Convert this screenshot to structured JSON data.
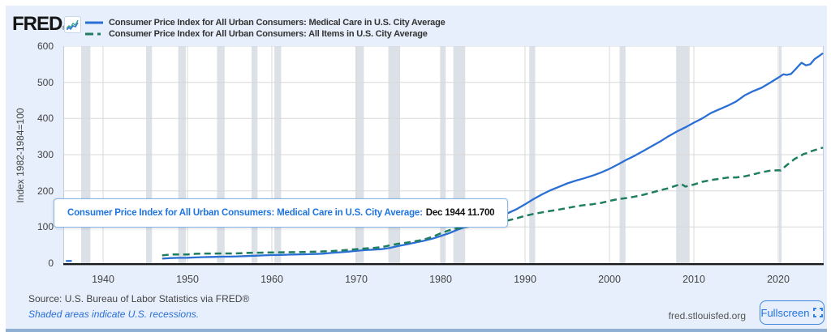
{
  "header": {
    "logo_text": "FRED",
    "logo_reg": "®",
    "legend": [
      {
        "label": "Consumer Price Index for All Urban Consumers: Medical Care in U.S. City Average",
        "color": "#2a6fd4",
        "line_style": "solid"
      },
      {
        "label": "Consumer Price Index for All Urban Consumers: All Items in U.S. City Average",
        "color": "#1e7e5e",
        "line_style": "dashed"
      }
    ]
  },
  "tooltip": {
    "series_label": "Consumer Price Index for All Urban Consumers: Medical Care in U.S. City Average:",
    "value_text": "Dec 1944 11.700"
  },
  "footer": {
    "source": "Source: U.S. Bureau of Labor Statistics via FRED®",
    "recession_note": "Shaded areas indicate U.S. recessions.",
    "site": "fred.stlouisfed.org",
    "fullscreen_label": "Fullscreen"
  },
  "colors": {
    "background": "#e6effb",
    "plot_background": "#ffffff",
    "gridline": "#d8d8d8",
    "plot_border": "#c8ccd0",
    "recession_band": "#dce1e8",
    "axis_line": "#1a1a1a",
    "series_medical": "#2a6fd4",
    "series_all_items": "#1e7e5e",
    "accent_blue": "#2272dd"
  },
  "chart_data": {
    "type": "line",
    "title": "",
    "xlabel": "",
    "ylabel": "Index 1982-1984=100",
    "x_range": [
      1935.3,
      2025.4
    ],
    "ylim": [
      0,
      600
    ],
    "x_ticks": [
      1940,
      1950,
      1960,
      1970,
      1980,
      1990,
      2000,
      2010,
      2020
    ],
    "y_ticks": [
      0,
      100,
      200,
      300,
      400,
      500,
      600
    ],
    "grid": true,
    "legend_position": "top-left",
    "recessions": [
      [
        1937.4,
        1938.5
      ],
      [
        1945.1,
        1945.8
      ],
      [
        1948.9,
        1949.8
      ],
      [
        1953.5,
        1954.4
      ],
      [
        1957.6,
        1958.3
      ],
      [
        1960.3,
        1961.1
      ],
      [
        1969.9,
        1970.9
      ],
      [
        1973.8,
        1975.2
      ],
      [
        1980.0,
        1980.6
      ],
      [
        1981.5,
        1982.9
      ],
      [
        1990.5,
        1991.2
      ],
      [
        2001.2,
        2001.9
      ],
      [
        2007.9,
        2009.5
      ],
      [
        2020.1,
        2020.4
      ]
    ],
    "series": [
      {
        "name": "Consumer Price Index for All Urban Consumers: Medical Care in U.S. City Average",
        "color": "#2a6fd4",
        "line_style": "solid",
        "segments": [
          [
            [
              1935.6,
              6
            ],
            [
              1936.3,
              6
            ]
          ],
          [
            [
              1947,
              12.6
            ],
            [
              1948,
              14.1
            ],
            [
              1949,
              14.7
            ],
            [
              1950,
              15.1
            ],
            [
              1951,
              15.9
            ],
            [
              1952,
              16.7
            ],
            [
              1953,
              17.3
            ],
            [
              1954,
              17.8
            ],
            [
              1955,
              18.2
            ],
            [
              1956,
              18.9
            ],
            [
              1957,
              19.7
            ],
            [
              1958,
              20.6
            ],
            [
              1959,
              21.5
            ],
            [
              1960,
              22.3
            ],
            [
              1961,
              22.9
            ],
            [
              1962,
              23.5
            ],
            [
              1963,
              24.1
            ],
            [
              1964,
              24.6
            ],
            [
              1965,
              25.2
            ],
            [
              1966,
              26.3
            ],
            [
              1967,
              28.2
            ],
            [
              1968,
              29.9
            ],
            [
              1969,
              31.9
            ],
            [
              1970,
              34.0
            ],
            [
              1971,
              36.1
            ],
            [
              1972,
              37.3
            ],
            [
              1973,
              38.8
            ],
            [
              1974,
              42.4
            ],
            [
              1975,
              47.5
            ],
            [
              1976,
              52.0
            ],
            [
              1977,
              57.0
            ],
            [
              1978,
              61.8
            ],
            [
              1979,
              67.5
            ],
            [
              1980,
              74.9
            ],
            [
              1981,
              82.9
            ],
            [
              1982,
              92.5
            ],
            [
              1983,
              100.6
            ],
            [
              1984,
              106.8
            ],
            [
              1985,
              113.5
            ],
            [
              1986,
              122.0
            ],
            [
              1987,
              130.1
            ],
            [
              1988,
              138.6
            ],
            [
              1989,
              149.3
            ],
            [
              1990,
              162.8
            ],
            [
              1991,
              177.0
            ],
            [
              1992,
              190.1
            ],
            [
              1993,
              201.4
            ],
            [
              1994,
              211.0
            ],
            [
              1995,
              220.5
            ],
            [
              1996,
              228.2
            ],
            [
              1997,
              234.6
            ],
            [
              1998,
              242.1
            ],
            [
              1999,
              250.6
            ],
            [
              2000,
              260.8
            ],
            [
              2001,
              272.8
            ],
            [
              2002,
              285.6
            ],
            [
              2003,
              297.1
            ],
            [
              2004,
              310.1
            ],
            [
              2005,
              323.2
            ],
            [
              2006,
              336.2
            ],
            [
              2007,
              351.1
            ],
            [
              2008,
              364.1
            ],
            [
              2009,
              375.6
            ],
            [
              2010,
              388.4
            ],
            [
              2011,
              400.3
            ],
            [
              2012,
              414.9
            ],
            [
              2013,
              425.1
            ],
            [
              2014,
              435.3
            ],
            [
              2015,
              446.8
            ],
            [
              2016,
              463.7
            ],
            [
              2017,
              475.3
            ],
            [
              2018,
              484.7
            ],
            [
              2019,
              498.4
            ],
            [
              2020,
              513.0
            ],
            [
              2020.6,
              522.0
            ],
            [
              2021,
              520.5
            ],
            [
              2021.5,
              523.0
            ],
            [
              2022,
              535.0
            ],
            [
              2022.75,
              554.0
            ],
            [
              2023.3,
              547.0
            ],
            [
              2023.8,
              550.0
            ],
            [
              2024.3,
              564.0
            ],
            [
              2024.8,
              572.0
            ],
            [
              2025.3,
              580.5
            ]
          ]
        ]
      },
      {
        "name": "Consumer Price Index for All Urban Consumers: All Items in U.S. City Average",
        "color": "#1e7e5e",
        "line_style": "dashed",
        "segments": [
          [
            [
              1947,
              21.5
            ],
            [
              1948,
              24.0
            ],
            [
              1949,
              23.9
            ],
            [
              1950,
              24.1
            ],
            [
              1951,
              25.9
            ],
            [
              1952,
              26.6
            ],
            [
              1953,
              26.7
            ],
            [
              1954,
              26.9
            ],
            [
              1955,
              26.8
            ],
            [
              1956,
              27.2
            ],
            [
              1957,
              28.1
            ],
            [
              1958,
              28.9
            ],
            [
              1959,
              29.2
            ],
            [
              1960,
              29.6
            ],
            [
              1961,
              29.9
            ],
            [
              1962,
              30.3
            ],
            [
              1963,
              30.6
            ],
            [
              1964,
              31.0
            ],
            [
              1965,
              31.5
            ],
            [
              1966,
              32.5
            ],
            [
              1967,
              33.4
            ],
            [
              1968,
              34.8
            ],
            [
              1969,
              36.7
            ],
            [
              1970,
              38.8
            ],
            [
              1971,
              40.5
            ],
            [
              1972,
              41.8
            ],
            [
              1973,
              44.4
            ],
            [
              1974,
              49.3
            ],
            [
              1975,
              53.8
            ],
            [
              1976,
              56.9
            ],
            [
              1977,
              60.6
            ],
            [
              1978,
              65.2
            ],
            [
              1979,
              72.6
            ],
            [
              1980,
              82.4
            ],
            [
              1981,
              90.9
            ],
            [
              1982,
              96.5
            ],
            [
              1983,
              99.6
            ],
            [
              1984,
              103.9
            ],
            [
              1985,
              107.6
            ],
            [
              1986,
              109.6
            ],
            [
              1987,
              113.6
            ],
            [
              1988,
              118.3
            ],
            [
              1989,
              124.0
            ],
            [
              1990,
              130.7
            ],
            [
              1991,
              136.2
            ],
            [
              1992,
              140.3
            ],
            [
              1993,
              144.5
            ],
            [
              1994,
              148.2
            ],
            [
              1995,
              152.4
            ],
            [
              1996,
              156.9
            ],
            [
              1997,
              160.5
            ],
            [
              1998,
              163.0
            ],
            [
              1999,
              166.6
            ],
            [
              2000,
              172.2
            ],
            [
              2001,
              177.1
            ],
            [
              2002,
              179.9
            ],
            [
              2003,
              184.0
            ],
            [
              2004,
              188.9
            ],
            [
              2005,
              195.3
            ],
            [
              2006,
              201.6
            ],
            [
              2007,
              207.3
            ],
            [
              2008.5,
              219.0
            ],
            [
              2009,
              211.8
            ],
            [
              2009.5,
              215.0
            ],
            [
              2010,
              217.5
            ],
            [
              2011,
              224.9
            ],
            [
              2012,
              229.6
            ],
            [
              2013,
              233.0
            ],
            [
              2014,
              236.7
            ],
            [
              2015,
              237.0
            ],
            [
              2016,
              240.0
            ],
            [
              2017,
              245.1
            ],
            [
              2018,
              251.1
            ],
            [
              2019,
              255.7
            ],
            [
              2020,
              257.0
            ],
            [
              2020.3,
              256.5
            ],
            [
              2021,
              271.0
            ],
            [
              2022,
              289.1
            ],
            [
              2022.6,
              296.0
            ],
            [
              2023,
              301.8
            ],
            [
              2023.5,
              305.0
            ],
            [
              2024,
              310.3
            ],
            [
              2024.6,
              314.5
            ],
            [
              2025.3,
              319.5
            ]
          ]
        ]
      }
    ]
  }
}
